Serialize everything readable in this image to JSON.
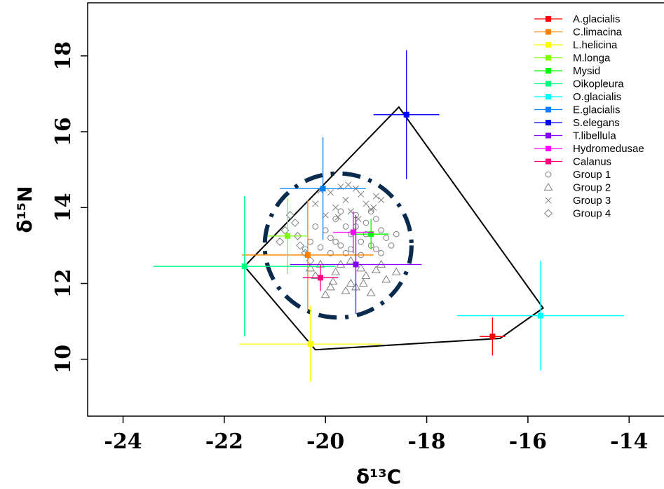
{
  "chart_data": {
    "type": "scatter",
    "title": "",
    "xlabel": "δ¹³C",
    "ylabel": "δ¹⁵N",
    "xlim": [
      -24.7,
      -13.2
    ],
    "ylim": [
      8.5,
      19.4
    ],
    "xticks": [
      "-24",
      "-22",
      "-20",
      "-18",
      "-16",
      "-14"
    ],
    "yticks": [
      "10",
      "12",
      "14",
      "16",
      "18"
    ],
    "grid": false,
    "legend_position": "top-right",
    "species": [
      {
        "name": "A.glacialis",
        "color": "#ff0000",
        "x": -16.7,
        "y": 10.6,
        "xerr": 0.25,
        "yerr": 0.5
      },
      {
        "name": "C.limacina",
        "color": "#ff8000",
        "x": -20.35,
        "y": 12.75,
        "xerr": 1.3,
        "yerr": 1.45
      },
      {
        "name": "L.helicina",
        "color": "#ffff00",
        "x": -20.3,
        "y": 10.4,
        "xerr": 1.4,
        "yerr": 1.0
      },
      {
        "name": "M.longa",
        "color": "#80ff00",
        "x": -20.75,
        "y": 13.25,
        "xerr": 0.4,
        "yerr": 1.0
      },
      {
        "name": "Mysid",
        "color": "#00ff00",
        "x": -19.1,
        "y": 13.3,
        "xerr": 0.35,
        "yerr": 0.4
      },
      {
        "name": "Oikopleura",
        "color": "#00ff80",
        "x": -21.6,
        "y": 12.45,
        "xerr": 1.8,
        "yerr": 1.85
      },
      {
        "name": "O.glacialis",
        "color": "#00ffff",
        "x": -15.75,
        "y": 11.15,
        "xerr": 1.65,
        "yerr": 1.45
      },
      {
        "name": "E.glacialis",
        "color": "#0080ff",
        "x": -20.05,
        "y": 14.5,
        "xerr": 0.85,
        "yerr": 1.35
      },
      {
        "name": "S.elegans",
        "color": "#0000ff",
        "x": -18.4,
        "y": 16.45,
        "xerr": 0.65,
        "yerr": 1.7
      },
      {
        "name": "T.libellula",
        "color": "#8000ff",
        "x": -19.4,
        "y": 12.5,
        "xerr": 1.3,
        "yerr": 1.3
      },
      {
        "name": "Hydromedusae",
        "color": "#ff00ff",
        "x": -19.45,
        "y": 13.35,
        "xerr": 0.4,
        "yerr": 0.55
      },
      {
        "name": "Calanus",
        "color": "#ff0080",
        "x": -20.1,
        "y": 12.15,
        "xerr": 0.35,
        "yerr": 0.35
      }
    ],
    "hull": [
      [
        -21.6,
        12.45
      ],
      [
        -20.2,
        10.25
      ],
      [
        -16.55,
        10.55
      ],
      [
        -15.7,
        11.35
      ],
      [
        -18.55,
        16.65
      ]
    ],
    "ellipse": {
      "cx": -19.75,
      "cy": 13.0,
      "rx": 1.45,
      "ry": 1.9,
      "color": "#0a2b4e"
    },
    "groups": [
      {
        "name": "Group 1",
        "marker": "circle",
        "points": [
          [
            -19.9,
            13.2
          ],
          [
            -19.6,
            13.5
          ],
          [
            -19.3,
            13.1
          ],
          [
            -19.0,
            12.9
          ],
          [
            -18.9,
            13.4
          ],
          [
            -19.2,
            13.6
          ],
          [
            -19.5,
            12.9
          ],
          [
            -19.7,
            13.0
          ],
          [
            -20.1,
            12.95
          ],
          [
            -19.4,
            13.8
          ],
          [
            -19.1,
            13.0
          ],
          [
            -18.8,
            13.2
          ],
          [
            -19.8,
            13.7
          ],
          [
            -20.2,
            13.5
          ],
          [
            -19.6,
            12.8
          ],
          [
            -19.3,
            12.75
          ],
          [
            -19.0,
            13.7
          ],
          [
            -18.7,
            13.0
          ],
          [
            -19.5,
            13.3
          ],
          [
            -19.2,
            13.3
          ],
          [
            -20.0,
            13.4
          ],
          [
            -20.3,
            13.1
          ],
          [
            -19.9,
            12.8
          ],
          [
            -19.4,
            13.5
          ],
          [
            -18.9,
            12.8
          ],
          [
            -19.7,
            13.9
          ],
          [
            -19.1,
            13.9
          ],
          [
            -18.6,
            13.3
          ],
          [
            -20.4,
            12.9
          ],
          [
            -19.8,
            13.1
          ]
        ]
      },
      {
        "name": "Group 2",
        "marker": "triangle",
        "points": [
          [
            -19.8,
            12.3
          ],
          [
            -19.5,
            12.0
          ],
          [
            -19.2,
            12.2
          ],
          [
            -19.9,
            11.9
          ],
          [
            -20.0,
            11.7
          ],
          [
            -19.6,
            11.8
          ],
          [
            -19.3,
            12.4
          ],
          [
            -19.0,
            12.35
          ],
          [
            -18.8,
            12.1
          ],
          [
            -19.7,
            12.5
          ],
          [
            -20.2,
            12.2
          ],
          [
            -19.4,
            11.9
          ],
          [
            -19.1,
            11.75
          ],
          [
            -18.6,
            12.3
          ],
          [
            -20.1,
            12.5
          ],
          [
            -19.5,
            12.6
          ],
          [
            -18.9,
            12.5
          ],
          [
            -19.85,
            12.05
          ],
          [
            -19.25,
            12.0
          ],
          [
            -20.3,
            12.4
          ]
        ]
      },
      {
        "name": "Group 3",
        "marker": "cross",
        "points": [
          [
            -19.9,
            14.4
          ],
          [
            -19.6,
            14.2
          ],
          [
            -19.4,
            14.5
          ],
          [
            -19.2,
            14.1
          ],
          [
            -19.0,
            14.3
          ],
          [
            -19.8,
            14.0
          ],
          [
            -19.5,
            13.9
          ],
          [
            -19.3,
            14.35
          ],
          [
            -19.7,
            14.55
          ],
          [
            -20.2,
            14.1
          ],
          [
            -20.0,
            13.8
          ],
          [
            -19.1,
            13.95
          ],
          [
            -18.9,
            14.2
          ],
          [
            -19.55,
            14.6
          ],
          [
            -20.1,
            14.45
          ],
          [
            -19.75,
            13.75
          ],
          [
            -19.35,
            13.7
          ],
          [
            -19.05,
            14.0
          ]
        ]
      },
      {
        "name": "Group 4",
        "marker": "diamond",
        "points": [
          [
            -20.8,
            13.4
          ],
          [
            -20.6,
            13.6
          ],
          [
            -20.9,
            13.1
          ],
          [
            -20.5,
            13.0
          ],
          [
            -20.4,
            12.8
          ],
          [
            -20.7,
            13.8
          ],
          [
            -20.3,
            12.6
          ],
          [
            -20.55,
            13.25
          ]
        ]
      }
    ]
  }
}
